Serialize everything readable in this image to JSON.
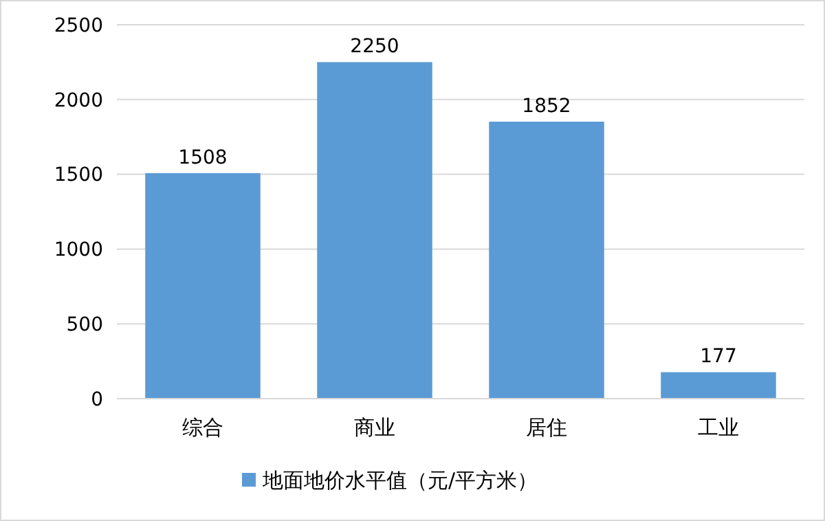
{
  "chart_data": {
    "type": "bar",
    "categories": [
      "综合",
      "商业",
      "居住",
      "工业"
    ],
    "series": [
      {
        "name": "地面地价水平值（元/平方米）",
        "color": "#5b9bd5",
        "values": [
          1508,
          2250,
          1852,
          177
        ]
      }
    ],
    "ylim": [
      0,
      2500
    ],
    "yticks": [
      0,
      500,
      1000,
      1500,
      2000,
      2500
    ],
    "grid": "y",
    "legend": "bottom",
    "data_labels": true
  }
}
